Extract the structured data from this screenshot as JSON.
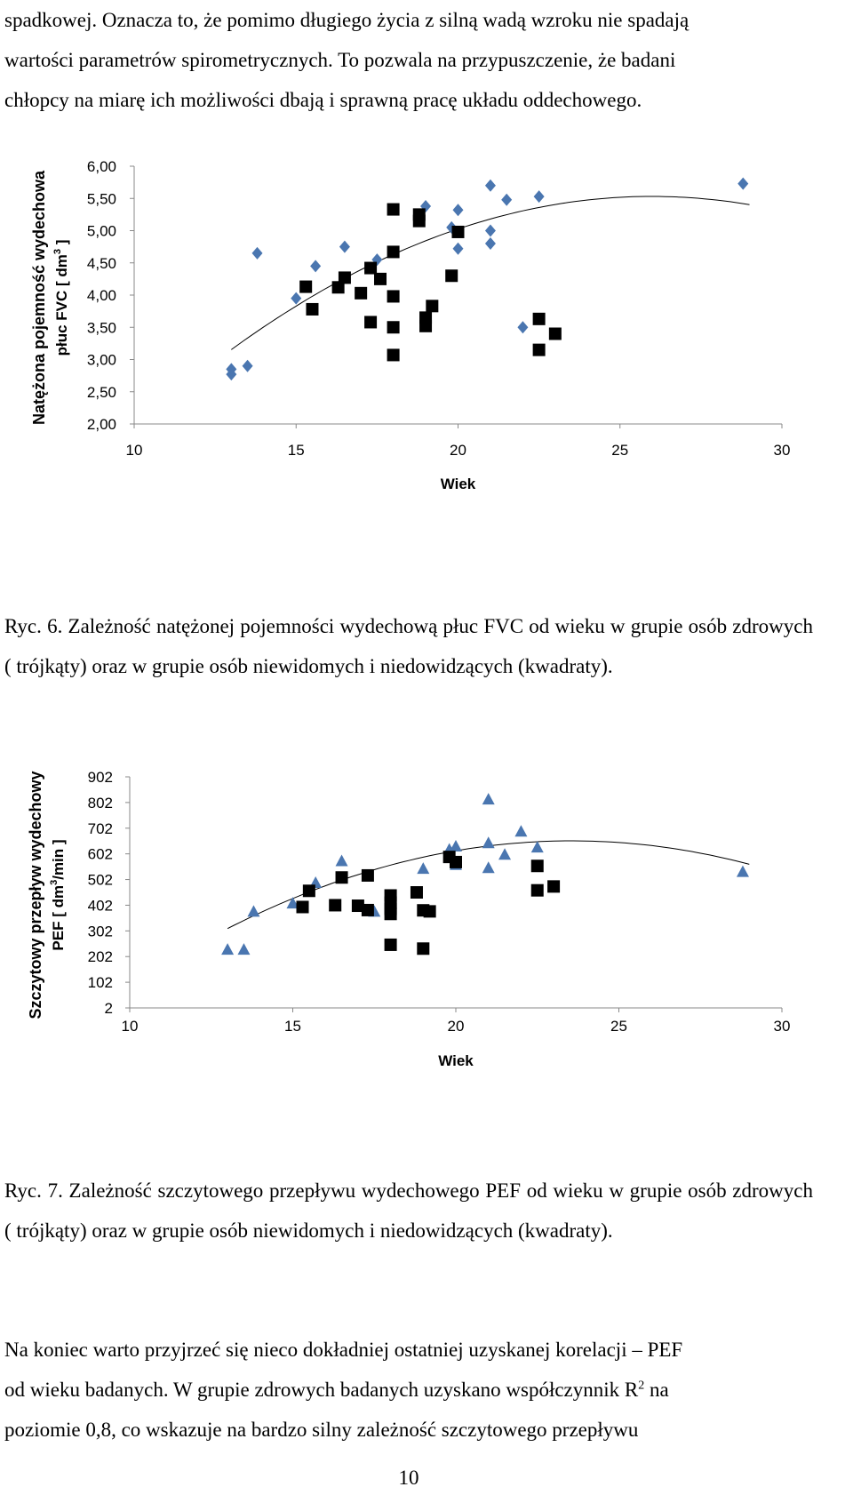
{
  "top_text": {
    "lines": [
      "spadkowej. Oznacza to, że pomimo długiego życia z silną wadą wzroku nie spadają",
      "wartości parametrów spirometrycznych. To pozwala na przypuszczenie, że badani",
      "chłopcy na miarę ich możliwości dbają i sprawną pracę układu oddechowego."
    ]
  },
  "figure6": {
    "caption": "Ryc. 6. Zależność natężonej pojemności wydechową płuc FVC od wieku w grupie osób zdrowych ( trójkąty) oraz w grupie osób niewidomych i niedowidzących (kwadraty)."
  },
  "figure7": {
    "caption": "Ryc. 7. Zależność szczytowego przepływu wydechowego PEF od wieku w grupie osób zdrowych ( trójkąty) oraz w grupie osób niewidomych i niedowidzących (kwadraty)."
  },
  "bottom_text": {
    "line1": "Na koniec warto przyjrzeć się nieco dokładniej ostatniej uzyskanej korelacji – PEF",
    "line2_a": "od wieku badanych.  W grupie zdrowych badanych uzyskano współczynnik R",
    "line2_sup": "2",
    "line2_b": " na",
    "line3": "poziomie 0,8, co wskazuje na bardzo silny zależność szczytowego przepływu"
  },
  "page_number": "10",
  "colors": {
    "healthy": "#4a76b0",
    "impaired": "#000000",
    "trend": "#000000"
  },
  "chart_data": [
    {
      "type": "scatter",
      "xlabel": "Wiek",
      "ylabel_line1": "Natężona pojemność wydechowa",
      "ylabel_line2": "płuc FVC [ dm",
      "ylabel_sup": "3",
      "ylabel_line2_end": " ]",
      "xlim": [
        10,
        30
      ],
      "ylim": [
        2.0,
        6.0
      ],
      "x_ticks": [
        "10",
        "15",
        "20",
        "25",
        "30"
      ],
      "x_tick_values": [
        10,
        15,
        20,
        25,
        30
      ],
      "y_ticks": [
        "2,00",
        "2,50",
        "3,00",
        "3,50",
        "4,00",
        "4,50",
        "5,00",
        "5,50",
        "6,00"
      ],
      "y_tick_values": [
        2.0,
        2.5,
        3.0,
        3.5,
        4.0,
        4.5,
        5.0,
        5.5,
        6.0
      ],
      "series": [
        {
          "marker": "diamond",
          "points": [
            [
              13.0,
              2.85
            ],
            [
              13.0,
              2.77
            ],
            [
              13.5,
              2.9
            ],
            [
              13.8,
              4.65
            ],
            [
              15.0,
              3.95
            ],
            [
              15.6,
              4.45
            ],
            [
              16.5,
              4.75
            ],
            [
              17.5,
              4.55
            ],
            [
              19.0,
              5.38
            ],
            [
              19.8,
              5.05
            ],
            [
              20.0,
              5.32
            ],
            [
              20.0,
              4.72
            ],
            [
              21.0,
              5.7
            ],
            [
              21.0,
              5.0
            ],
            [
              21.0,
              4.8
            ],
            [
              21.5,
              5.48
            ],
            [
              22.0,
              3.5
            ],
            [
              22.5,
              5.53
            ],
            [
              28.8,
              5.73
            ]
          ]
        },
        {
          "marker": "square",
          "points": [
            [
              15.3,
              4.13
            ],
            [
              15.5,
              3.78
            ],
            [
              16.3,
              4.12
            ],
            [
              16.5,
              4.27
            ],
            [
              17.0,
              4.03
            ],
            [
              17.3,
              4.42
            ],
            [
              17.3,
              3.58
            ],
            [
              17.6,
              4.25
            ],
            [
              18.0,
              5.33
            ],
            [
              18.0,
              4.67
            ],
            [
              18.0,
              3.98
            ],
            [
              18.0,
              3.5
            ],
            [
              18.0,
              3.07
            ],
            [
              18.8,
              5.25
            ],
            [
              18.8,
              5.15
            ],
            [
              19.0,
              3.65
            ],
            [
              19.0,
              3.52
            ],
            [
              19.2,
              3.83
            ],
            [
              19.8,
              4.3
            ],
            [
              20.0,
              4.98
            ],
            [
              22.5,
              3.63
            ],
            [
              22.5,
              3.15
            ],
            [
              23.0,
              3.4
            ]
          ]
        }
      ],
      "trendline": {
        "kind": "quadratic",
        "a": -0.0141,
        "b": 0.7328,
        "c": -3.99,
        "x_range": [
          13,
          29
        ]
      }
    },
    {
      "type": "scatter",
      "xlabel": "Wiek",
      "ylabel_line1": "Szczytowy przepływ wydechowy",
      "ylabel_line2": "PEF [ dm",
      "ylabel_sup": "3",
      "ylabel_line2_end": "/min ]",
      "xlim": [
        10,
        30
      ],
      "ylim": [
        2,
        902
      ],
      "x_ticks": [
        "10",
        "15",
        "20",
        "25",
        "30"
      ],
      "x_tick_values": [
        10,
        15,
        20,
        25,
        30
      ],
      "y_ticks": [
        "2",
        "102",
        "202",
        "302",
        "402",
        "502",
        "602",
        "702",
        "802",
        "902"
      ],
      "y_tick_values": [
        2,
        102,
        202,
        302,
        402,
        502,
        602,
        702,
        802,
        902
      ],
      "series": [
        {
          "marker": "triangle",
          "points": [
            [
              13.0,
              230
            ],
            [
              13.5,
              230
            ],
            [
              13.8,
              378
            ],
            [
              15.0,
              410
            ],
            [
              15.7,
              490
            ],
            [
              16.5,
              575
            ],
            [
              17.5,
              378
            ],
            [
              19.0,
              545
            ],
            [
              19.8,
              620
            ],
            [
              20.0,
              632
            ],
            [
              20.0,
              560
            ],
            [
              21.0,
              815
            ],
            [
              21.0,
              645
            ],
            [
              21.0,
              548
            ],
            [
              21.5,
              600
            ],
            [
              22.0,
              690
            ],
            [
              22.5,
              628
            ],
            [
              28.8,
              533
            ]
          ]
        },
        {
          "marker": "square",
          "points": [
            [
              15.3,
              395
            ],
            [
              15.5,
              458
            ],
            [
              16.3,
              402
            ],
            [
              16.5,
              510
            ],
            [
              17.0,
              400
            ],
            [
              17.3,
              518
            ],
            [
              17.3,
              383
            ],
            [
              18.0,
              440
            ],
            [
              18.0,
              412
            ],
            [
              18.0,
              388
            ],
            [
              18.0,
              368
            ],
            [
              18.0,
              248
            ],
            [
              18.8,
              452
            ],
            [
              19.0,
              233
            ],
            [
              19.0,
              382
            ],
            [
              19.2,
              378
            ],
            [
              19.8,
              590
            ],
            [
              20.0,
              570
            ],
            [
              22.5,
              555
            ],
            [
              22.5,
              460
            ],
            [
              23.0,
              475
            ]
          ]
        }
      ],
      "trendline": {
        "kind": "quadratic",
        "a": -3.07,
        "b": 144.6,
        "c": -1050,
        "x_range": [
          13,
          29
        ]
      }
    }
  ]
}
